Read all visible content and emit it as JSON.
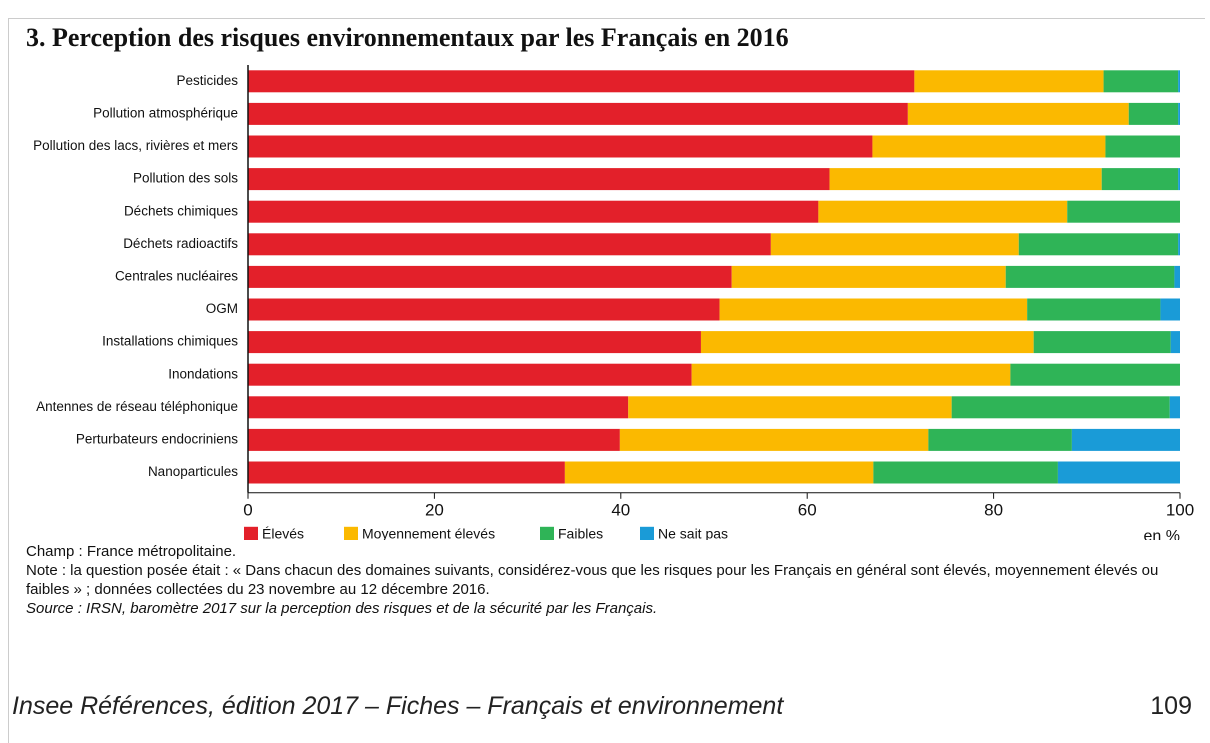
{
  "chart_data": {
    "type": "stacked-bar",
    "title": "3. Perception des risques environnementaux par les Français en 2016",
    "categories": [
      "Pesticides",
      "Pollution atmosphérique",
      "Pollution des lacs, rivières et mers",
      "Pollution des sols",
      "Déchets chimiques",
      "Déchets radioactifs",
      "Centrales nucléaires",
      "OGM",
      "Installations chimiques",
      "Inondations",
      "Antennes de réseau téléphonique",
      "Perturbateurs endocriniens",
      "Nanoparticules"
    ],
    "series": [
      {
        "name": "Élevés",
        "color": "#e3202a",
        "values": [
          71.5,
          70.8,
          67.0,
          62.4,
          61.2,
          56.1,
          51.9,
          50.6,
          48.6,
          47.6,
          40.8,
          39.9,
          34.0
        ]
      },
      {
        "name": "Moyennement élevés",
        "color": "#fbb900",
        "values": [
          20.3,
          23.7,
          25.0,
          29.2,
          26.7,
          26.6,
          29.4,
          33.0,
          35.7,
          34.2,
          34.7,
          33.1,
          33.1
        ]
      },
      {
        "name": "Faibles",
        "color": "#2fb457",
        "values": [
          8.0,
          5.3,
          8.0,
          8.2,
          12.1,
          17.1,
          18.1,
          14.3,
          14.7,
          18.2,
          23.4,
          15.4,
          19.8
        ]
      },
      {
        "name": "Ne sait pas",
        "color": "#1a9bd7",
        "values": [
          0.2,
          0.2,
          0,
          0.2,
          0,
          0.2,
          0.6,
          2.1,
          1.0,
          0,
          1.1,
          11.6,
          13.1
        ]
      }
    ],
    "xlim": [
      0,
      100
    ],
    "xticks": [
      0,
      20,
      40,
      60,
      80,
      100
    ],
    "xlabel": "en %",
    "notes": [
      "Champ : France métropolitaine.",
      "Note : la question posée était  : « Dans chacun des domaines suivants, considérez-vous que les risques pour les Français en général sont élevés, moyennement élevés ou faibles » ; données collectées du 23 novembre au 12 décembre 2016."
    ],
    "source": "Source : IRSN, baromètre 2017 sur la perception des risques et de la sécurité par les Français."
  },
  "footer": {
    "text": "Insee Références, édition 2017 – Fiches – Français et environnement",
    "page": "109"
  }
}
